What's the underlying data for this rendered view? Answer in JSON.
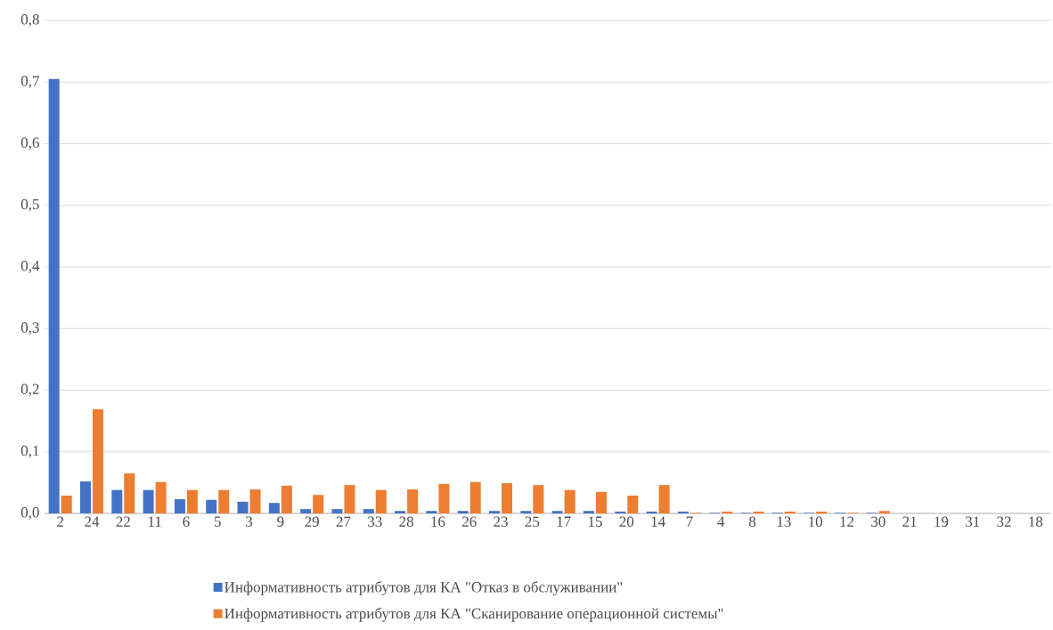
{
  "chart_data": {
    "type": "bar",
    "categories": [
      "2",
      "24",
      "22",
      "11",
      "6",
      "5",
      "3",
      "9",
      "29",
      "27",
      "33",
      "28",
      "16",
      "26",
      "23",
      "25",
      "17",
      "15",
      "20",
      "14",
      "7",
      "4",
      "8",
      "13",
      "10",
      "12",
      "30",
      "21",
      "19",
      "31",
      "32",
      "18"
    ],
    "series": [
      {
        "name": "Информативность атрибутов для КА \"Отказ в обслуживании\"",
        "color": "#4472c4",
        "values": [
          0.705,
          0.052,
          0.038,
          0.038,
          0.023,
          0.022,
          0.019,
          0.017,
          0.007,
          0.007,
          0.007,
          0.004,
          0.004,
          0.004,
          0.004,
          0.004,
          0.004,
          0.004,
          0.003,
          0.003,
          0.003,
          0.001,
          0.001,
          0.001,
          0.001,
          0.001,
          0.001,
          0,
          0,
          0,
          0,
          0
        ]
      },
      {
        "name": "Информативность атрибутов для КА \"Сканирование операционной системы\"",
        "color": "#ed7d31",
        "values": [
          0.029,
          0.169,
          0.065,
          0.051,
          0.038,
          0.038,
          0.039,
          0.045,
          0.03,
          0.046,
          0.038,
          0.039,
          0.048,
          0.051,
          0.049,
          0.046,
          0.038,
          0.035,
          0.029,
          0.046,
          0.001,
          0.003,
          0.003,
          0.003,
          0.003,
          0.001,
          0.004,
          0,
          0,
          0,
          0,
          0
        ]
      }
    ],
    "ylim": [
      0,
      0.8
    ],
    "yticks": [
      {
        "value": 0,
        "label": "0,0"
      },
      {
        "value": 0.1,
        "label": "0,1"
      },
      {
        "value": 0.2,
        "label": "0,2"
      },
      {
        "value": 0.3,
        "label": "0,3"
      },
      {
        "value": 0.4,
        "label": "0,4"
      },
      {
        "value": 0.5,
        "label": "0,5"
      },
      {
        "value": 0.6,
        "label": "0,6"
      },
      {
        "value": 0.7,
        "label": "0,7"
      },
      {
        "value": 0.8,
        "label": "0,8"
      }
    ],
    "grid": "y",
    "legend": "bottom"
  }
}
